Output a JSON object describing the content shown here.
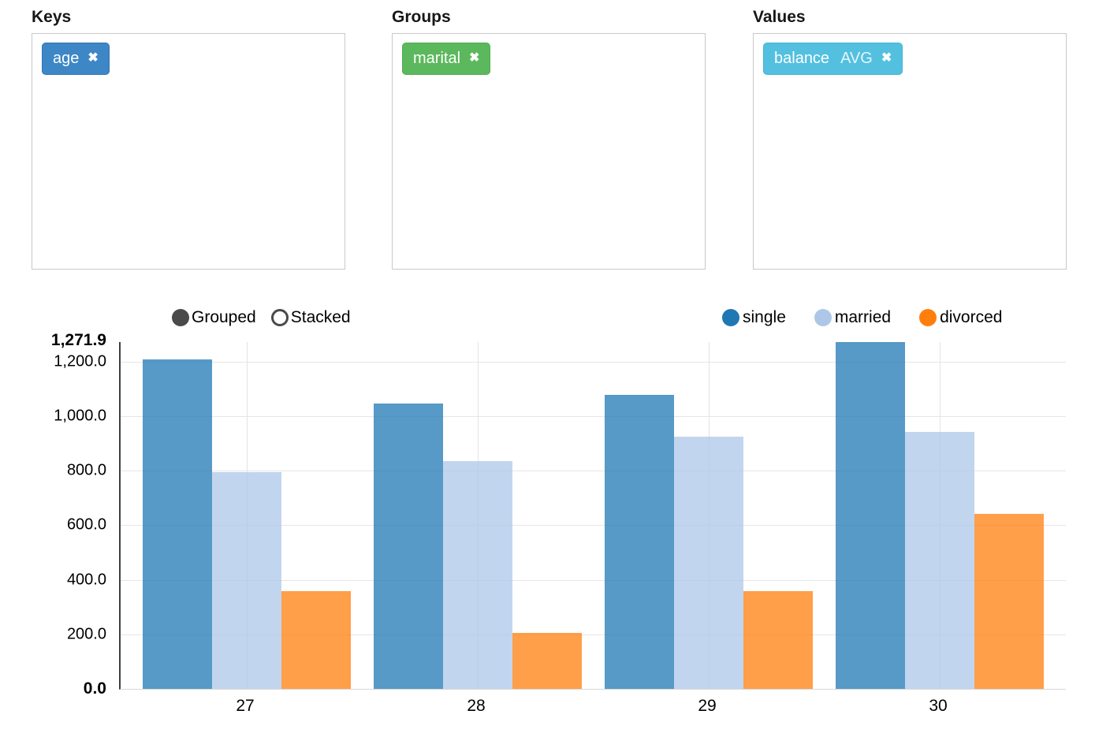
{
  "panels": {
    "keys": {
      "label": "Keys",
      "tag": {
        "text": "age",
        "remove_icon": "✖",
        "bg": "#3d87c6",
        "border": "#2f76b2"
      }
    },
    "groups": {
      "label": "Groups",
      "tag": {
        "text": "marital",
        "remove_icon": "✖",
        "bg": "#5cb85c",
        "border": "#4cae4c"
      }
    },
    "values": {
      "label": "Values",
      "tag": {
        "text": "balance",
        "agg": "AVG",
        "remove_icon": "✖",
        "bg": "#53c0e0",
        "border": "#41b5d8"
      }
    }
  },
  "chart_controls": {
    "grouped_label": "Grouped",
    "stacked_label": "Stacked",
    "selected": "Grouped"
  },
  "chart_data": {
    "type": "bar",
    "mode": "grouped",
    "title": "",
    "xlabel": "",
    "ylabel": "",
    "categories": [
      "27",
      "28",
      "29",
      "30"
    ],
    "series": [
      {
        "name": "single",
        "color": "#1f77b4",
        "values": [
          1208,
          1046,
          1078,
          1271.9
        ]
      },
      {
        "name": "married",
        "color": "#aec7e8",
        "values": [
          795,
          835,
          925,
          942
        ]
      },
      {
        "name": "divorced",
        "color": "#ff7f0e",
        "values": [
          358,
          205,
          358,
          642
        ]
      }
    ],
    "bar_opacity": 0.75,
    "ylim": [
      0,
      1271.9
    ],
    "y_ticks": [
      {
        "value": 1271.9,
        "label": "1,271.9",
        "bold": true
      },
      {
        "value": 1200,
        "label": "1,200.0",
        "bold": false
      },
      {
        "value": 1000,
        "label": "1,000.0",
        "bold": false
      },
      {
        "value": 800,
        "label": "800.0",
        "bold": false
      },
      {
        "value": 600,
        "label": "600.0",
        "bold": false
      },
      {
        "value": 400,
        "label": "400.0",
        "bold": false
      },
      {
        "value": 200,
        "label": "200.0",
        "bold": false
      },
      {
        "value": 0,
        "label": "0.0",
        "bold": true
      }
    ],
    "grid": true,
    "legend_position": "top-right"
  }
}
